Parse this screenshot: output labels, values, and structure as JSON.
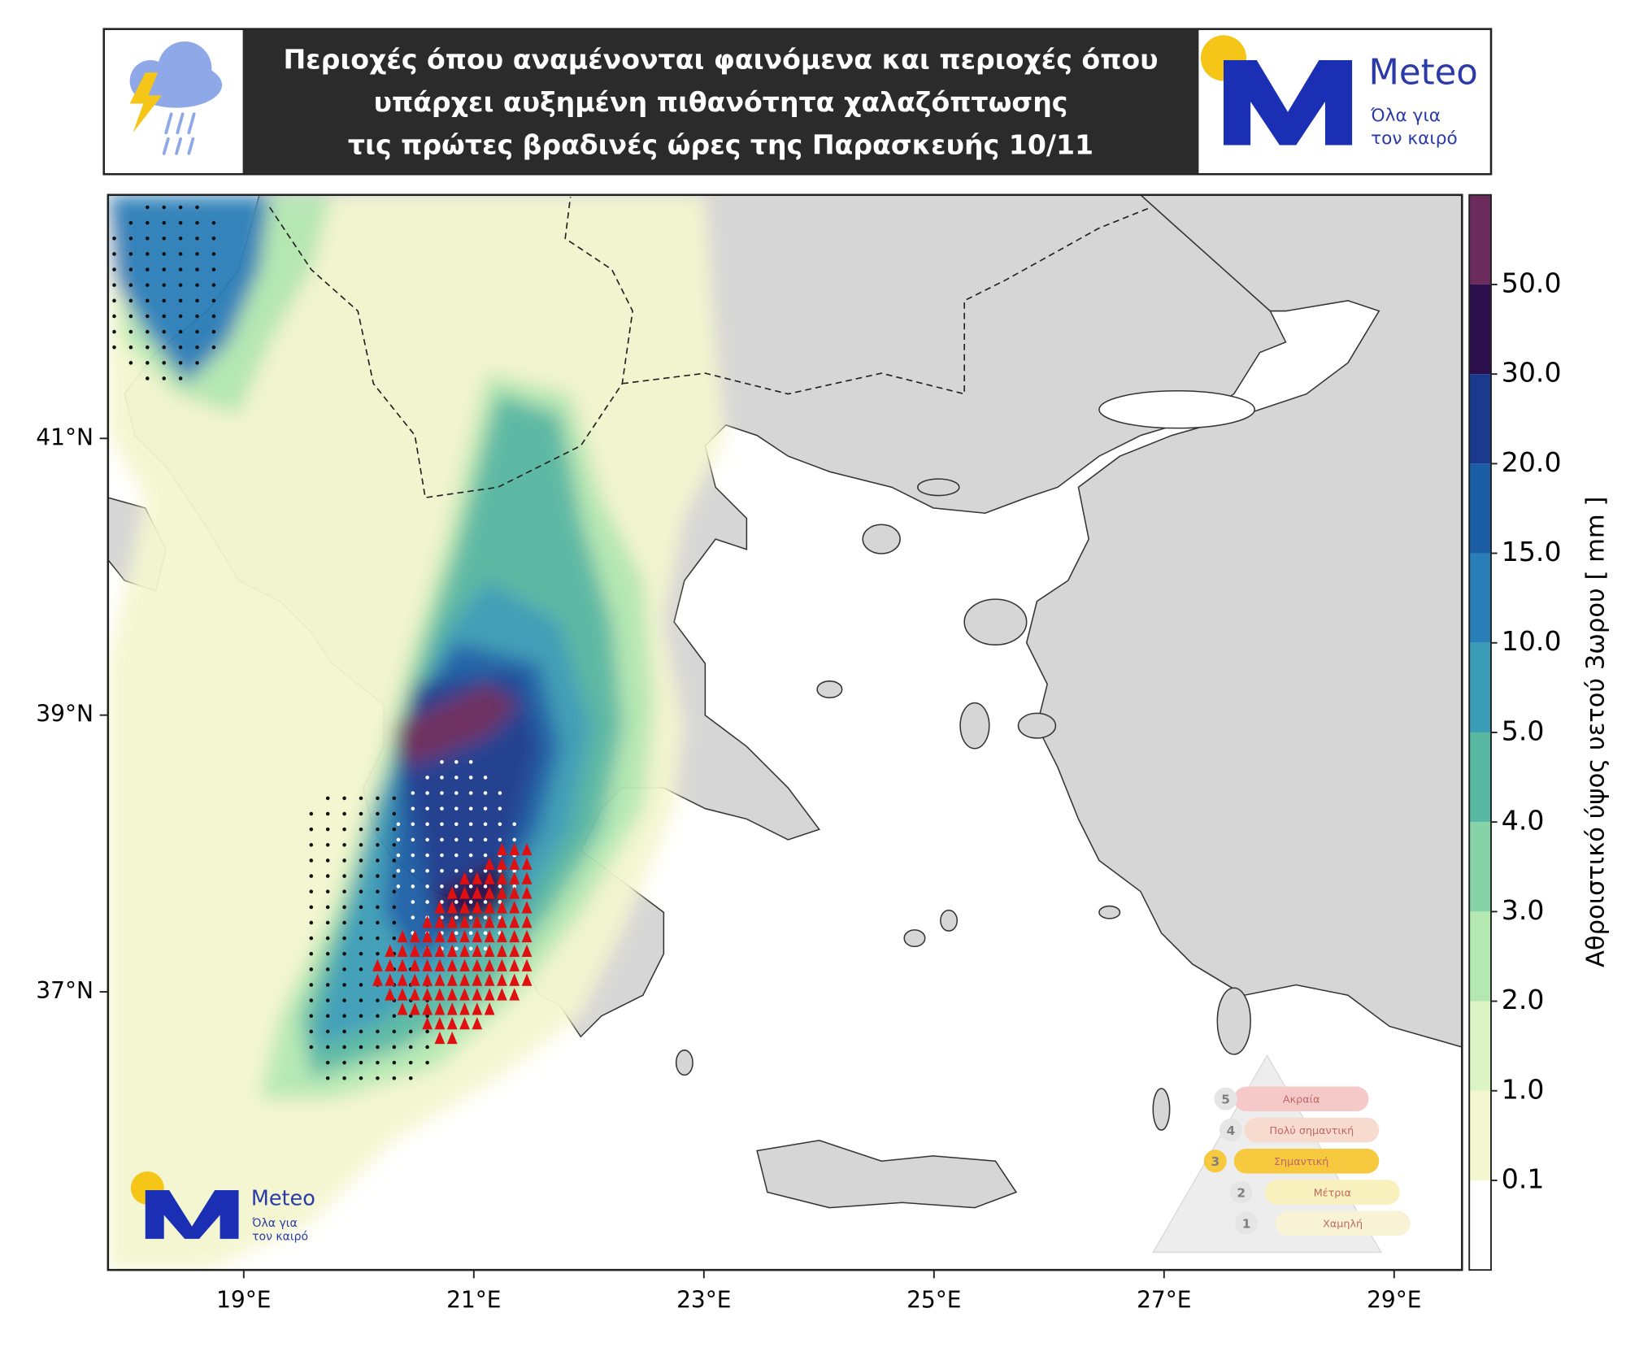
{
  "header": {
    "title_lines": [
      "Περιοχές όπου αναμένονται φαινόμενα και περιοχές όπου",
      "υπάρχει αυξημένη πιθανότητα χαλαζόπτωσης",
      "τις πρώτες βραδινές ώρες της Παρασκευής 10/11"
    ],
    "logo": {
      "name": "Meteo",
      "tagline": [
        "Όλα για",
        "τον καιρό"
      ]
    }
  },
  "map": {
    "xlim": [
      17.82,
      29.59
    ],
    "ylim": [
      34.99,
      42.76
    ],
    "xticks": [
      {
        "value": 19,
        "label": "19°E"
      },
      {
        "value": 21,
        "label": "21°E"
      },
      {
        "value": 23,
        "label": "23°E"
      },
      {
        "value": 25,
        "label": "25°E"
      },
      {
        "value": 27,
        "label": "27°E"
      },
      {
        "value": 29,
        "label": "29°E"
      }
    ],
    "yticks": [
      {
        "value": 37,
        "label": "37°N"
      },
      {
        "value": 39,
        "label": "39°N"
      },
      {
        "value": 41,
        "label": "41°N"
      }
    ],
    "logo": {
      "name": "Meteo",
      "tagline": [
        "Όλα για",
        "τον καιρό"
      ]
    }
  },
  "colorbar": {
    "label": "Αθροιστικό ύψος υετού 3ωρου [ mm ]",
    "ticks": [
      {
        "value": 0.1,
        "label": "0.1"
      },
      {
        "value": 1,
        "label": "1.0"
      },
      {
        "value": 2,
        "label": "2.0"
      },
      {
        "value": 3,
        "label": "3.0"
      },
      {
        "value": 4,
        "label": "4.0"
      },
      {
        "value": 5,
        "label": "5.0"
      },
      {
        "value": 10,
        "label": "10.0"
      },
      {
        "value": 15,
        "label": "15.0"
      },
      {
        "value": 20,
        "label": "20.0"
      },
      {
        "value": 30,
        "label": "30.0"
      },
      {
        "value": 50,
        "label": "50.0"
      }
    ],
    "colors": [
      "#ffffff",
      "#f4f6cf",
      "#dcf4c4",
      "#b4e8b1",
      "#85d3a6",
      "#58b8a2",
      "#3b9cb6",
      "#2a7eb8",
      "#1c5ea6",
      "#1b3a8e",
      "#2a0f4c",
      "#6b2b5c"
    ]
  },
  "risk_scale": {
    "levels": [
      {
        "number": "5",
        "label": "Ακραία"
      },
      {
        "number": "4",
        "label": "Πολύ σημαντική"
      },
      {
        "number": "3",
        "label": "Σημαντική"
      },
      {
        "number": "2",
        "label": "Μέτρια"
      },
      {
        "number": "1",
        "label": "Χαμηλή"
      }
    ]
  }
}
